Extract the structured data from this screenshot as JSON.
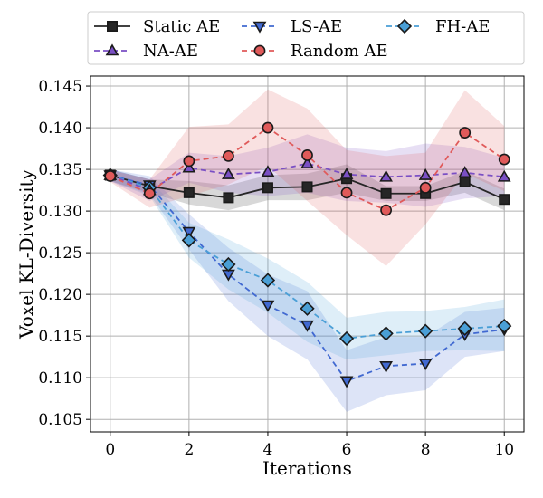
{
  "chart_data": {
    "type": "line",
    "title": "",
    "xlabel": "Iterations",
    "ylabel": "Voxel KL-Diversity",
    "x": [
      0,
      1,
      2,
      3,
      4,
      5,
      6,
      7,
      8,
      9,
      10
    ],
    "xlim": [
      -0.5,
      10.5
    ],
    "ylim": [
      0.1035,
      0.1462
    ],
    "xticks": [
      0,
      2,
      4,
      6,
      8,
      10
    ],
    "yticks": [
      0.105,
      0.11,
      0.115,
      0.12,
      0.125,
      0.13,
      0.135,
      0.14,
      0.145
    ],
    "grid": true,
    "legend_position": "top",
    "series": [
      {
        "name": "Static AE",
        "color": "#262626",
        "marker": "square",
        "linestyle": "solid",
        "values": [
          0.1343,
          0.133,
          0.1322,
          0.1316,
          0.1328,
          0.1329,
          0.1339,
          0.1321,
          0.1321,
          0.1335,
          0.1314
        ],
        "band_low": [
          0.1336,
          0.1322,
          0.1308,
          0.1301,
          0.1313,
          0.1313,
          0.1322,
          0.1312,
          0.1312,
          0.1322,
          0.1301
        ],
        "band_high": [
          0.135,
          0.1338,
          0.1336,
          0.1331,
          0.1343,
          0.1345,
          0.1356,
          0.133,
          0.133,
          0.1348,
          0.1327
        ]
      },
      {
        "name": "LS-AE",
        "color": "#4169d1",
        "marker": "triangle-down",
        "linestyle": "dashed",
        "values": [
          0.1343,
          0.1331,
          0.1275,
          0.1224,
          0.1187,
          0.1163,
          0.1096,
          0.1114,
          0.1117,
          0.1152,
          0.1158
        ],
        "band_low": [
          0.1336,
          0.132,
          0.1254,
          0.1192,
          0.115,
          0.1122,
          0.1059,
          0.1079,
          0.1085,
          0.1125,
          0.1132
        ],
        "band_high": [
          0.135,
          0.1342,
          0.1296,
          0.1256,
          0.1224,
          0.1204,
          0.1133,
          0.1149,
          0.1149,
          0.1179,
          0.1184
        ]
      },
      {
        "name": "FH-AE",
        "color": "#4a9fd6",
        "marker": "diamond",
        "linestyle": "dashed",
        "values": [
          0.1343,
          0.1328,
          0.1265,
          0.1236,
          0.1217,
          0.1183,
          0.1147,
          0.1153,
          0.1156,
          0.1159,
          0.1162
        ],
        "band_low": [
          0.1336,
          0.1318,
          0.1244,
          0.1206,
          0.1178,
          0.1143,
          0.1122,
          0.1127,
          0.1132,
          0.1133,
          0.1132
        ],
        "band_high": [
          0.135,
          0.1338,
          0.1286,
          0.1266,
          0.1243,
          0.1215,
          0.1172,
          0.1179,
          0.118,
          0.1185,
          0.1194
        ]
      },
      {
        "name": "NA-AE",
        "color": "#7a4fc4",
        "marker": "triangle-up",
        "linestyle": "dashed",
        "values": [
          0.1343,
          0.1325,
          0.1352,
          0.1344,
          0.1347,
          0.1357,
          0.1344,
          0.1341,
          0.1343,
          0.1346,
          0.1341
        ],
        "band_low": [
          0.1336,
          0.1312,
          0.1334,
          0.1322,
          0.1318,
          0.1322,
          0.1312,
          0.131,
          0.1305,
          0.1315,
          0.1318
        ],
        "band_high": [
          0.135,
          0.1338,
          0.137,
          0.1366,
          0.1376,
          0.1392,
          0.1376,
          0.1372,
          0.1381,
          0.1377,
          0.1364
        ]
      },
      {
        "name": "Random AE",
        "color": "#e05a5a",
        "marker": "circle",
        "linestyle": "dashed",
        "values": [
          0.1342,
          0.1321,
          0.136,
          0.1366,
          0.14,
          0.1367,
          0.1322,
          0.1301,
          0.1328,
          0.1394,
          0.1362
        ],
        "band_low": [
          0.1335,
          0.1304,
          0.1318,
          0.1332,
          0.1354,
          0.1312,
          0.1271,
          0.1234,
          0.1284,
          0.1345,
          0.1324
        ],
        "band_high": [
          0.1349,
          0.1338,
          0.1401,
          0.1404,
          0.1446,
          0.1423,
          0.1373,
          0.1366,
          0.137,
          0.1445,
          0.1402
        ]
      }
    ]
  }
}
